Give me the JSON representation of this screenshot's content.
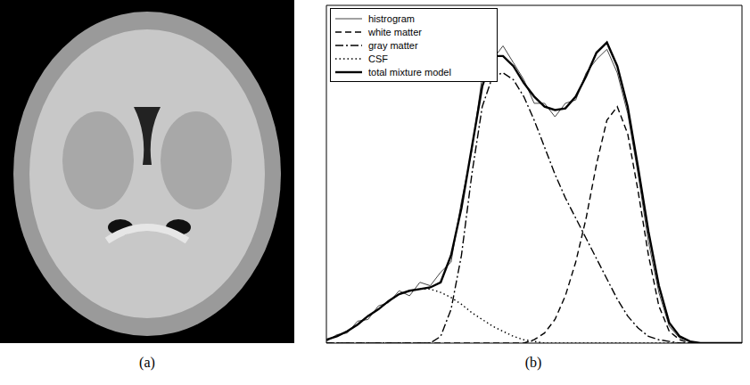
{
  "panel_labels": [
    "(a)",
    "(b)"
  ],
  "chart_data": {
    "type": "line",
    "x": [
      0,
      2.5,
      5,
      7.5,
      10,
      12.5,
      15,
      17.5,
      20,
      22.5,
      25,
      27.5,
      30,
      32.5,
      35,
      37.5,
      40,
      42.5,
      45,
      47.5,
      50,
      52.5,
      55,
      57.5,
      60,
      62.5,
      65,
      67.5,
      70,
      72.5,
      75,
      77.5,
      80,
      82.5,
      85,
      87.5,
      90,
      92.5,
      95,
      97.5,
      100
    ],
    "xlim": [
      0,
      100
    ],
    "ylim": [
      0,
      100
    ],
    "tick_labels": false,
    "legend": "upper left",
    "series": [
      {
        "name": "histrogram",
        "color": "#444444",
        "line_style": "solid",
        "values": [
          0.5,
          2.5,
          3,
          6.5,
          7,
          11,
          12,
          15.5,
          14,
          18,
          17,
          21,
          24,
          42,
          57,
          79,
          84,
          88,
          83,
          78,
          71,
          71,
          67,
          71,
          72,
          80,
          84,
          87,
          80,
          68,
          50,
          30,
          15,
          5,
          1.5,
          0.5,
          0,
          0,
          0,
          0,
          0
        ]
      },
      {
        "name": "white matter",
        "color": "#000000",
        "line_style": "dashed",
        "values": [
          0,
          0,
          0,
          0,
          0,
          0,
          0,
          0,
          0,
          0,
          0,
          0,
          0,
          0,
          0,
          0,
          0,
          0,
          0,
          0,
          1,
          3,
          7,
          14,
          24,
          37,
          53,
          66,
          70,
          62,
          45,
          26,
          11,
          3.5,
          1,
          0,
          0,
          0,
          0,
          0,
          0
        ]
      },
      {
        "name": "gray matter",
        "color": "#000000",
        "line_style": "dashdot",
        "values": [
          0,
          0,
          0,
          0,
          0,
          0,
          0,
          0,
          0,
          0,
          0,
          2,
          10,
          26,
          50,
          70,
          79,
          80,
          78,
          73,
          66,
          58,
          50,
          43,
          37,
          31,
          25,
          19,
          13,
          8,
          4.5,
          2,
          1,
          0.5,
          0,
          0,
          0,
          0,
          0,
          0,
          0
        ]
      },
      {
        "name": "CSF",
        "color": "#000000",
        "line_style": "dotted",
        "values": [
          1,
          2,
          3.5,
          5.5,
          8,
          10,
          12.5,
          14.5,
          15.5,
          16,
          16,
          15,
          13.5,
          11.5,
          9,
          7,
          5,
          3.5,
          2,
          1,
          0.5,
          0,
          0,
          0,
          0,
          0,
          0,
          0,
          0,
          0,
          0,
          0,
          0,
          0,
          0,
          0,
          0,
          0,
          0,
          0,
          0
        ]
      },
      {
        "name": "total mixture model",
        "color": "#000000",
        "line_style": "solid",
        "values": [
          1,
          2,
          3.5,
          5.5,
          8,
          10,
          12.5,
          14.5,
          15.5,
          16,
          16.5,
          18,
          26,
          40,
          58,
          76,
          85,
          85,
          82,
          77,
          73,
          70,
          69,
          69.5,
          73,
          79,
          86,
          89,
          82,
          70,
          52,
          33,
          17,
          6,
          2,
          0.5,
          0,
          0,
          0,
          0,
          0
        ]
      }
    ]
  }
}
